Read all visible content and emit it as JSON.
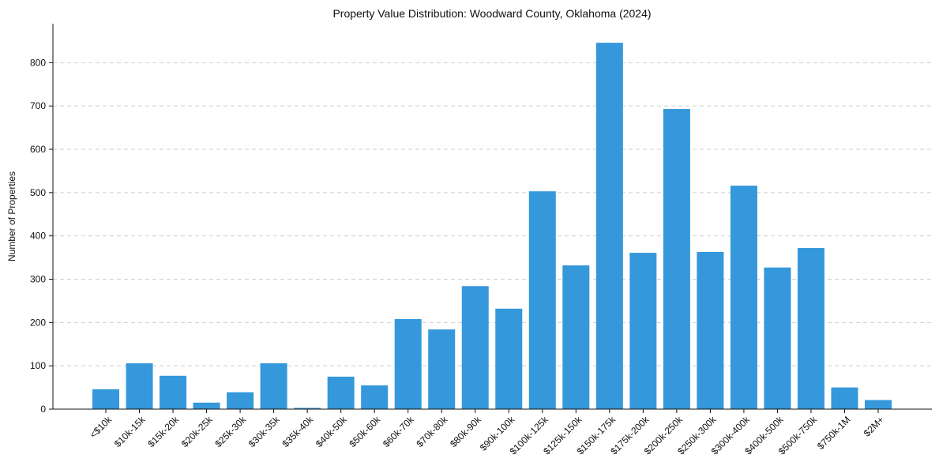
{
  "chart_data": {
    "type": "bar",
    "title": "Property Value Distribution: Woodward County, Oklahoma (2024)",
    "xlabel": "",
    "ylabel": "Number of Properties",
    "categories": [
      "<$10k",
      "$10k-15k",
      "$15k-20k",
      "$20k-25k",
      "$25k-30k",
      "$30k-35k",
      "$35k-40k",
      "$40k-50k",
      "$50k-60k",
      "$60k-70k",
      "$70k-80k",
      "$80k-90k",
      "$90k-100k",
      "$100k-125k",
      "$125k-150k",
      "$150k-175k",
      "$175k-200k",
      "$200k-250k",
      "$250k-300k",
      "$300k-400k",
      "$400k-500k",
      "$500k-750k",
      "$750k-1M",
      "$2M+"
    ],
    "values": [
      46,
      106,
      77,
      15,
      39,
      106,
      3,
      75,
      55,
      208,
      184,
      284,
      232,
      503,
      332,
      846,
      361,
      693,
      363,
      516,
      327,
      372,
      50,
      21
    ],
    "ylim": [
      0,
      890
    ],
    "yticks": [
      0,
      100,
      200,
      300,
      400,
      500,
      600,
      700,
      800
    ],
    "grid": true,
    "bar_color": "#3498db",
    "axis_color": "#111111",
    "grid_color": "#cfcfcf"
  }
}
